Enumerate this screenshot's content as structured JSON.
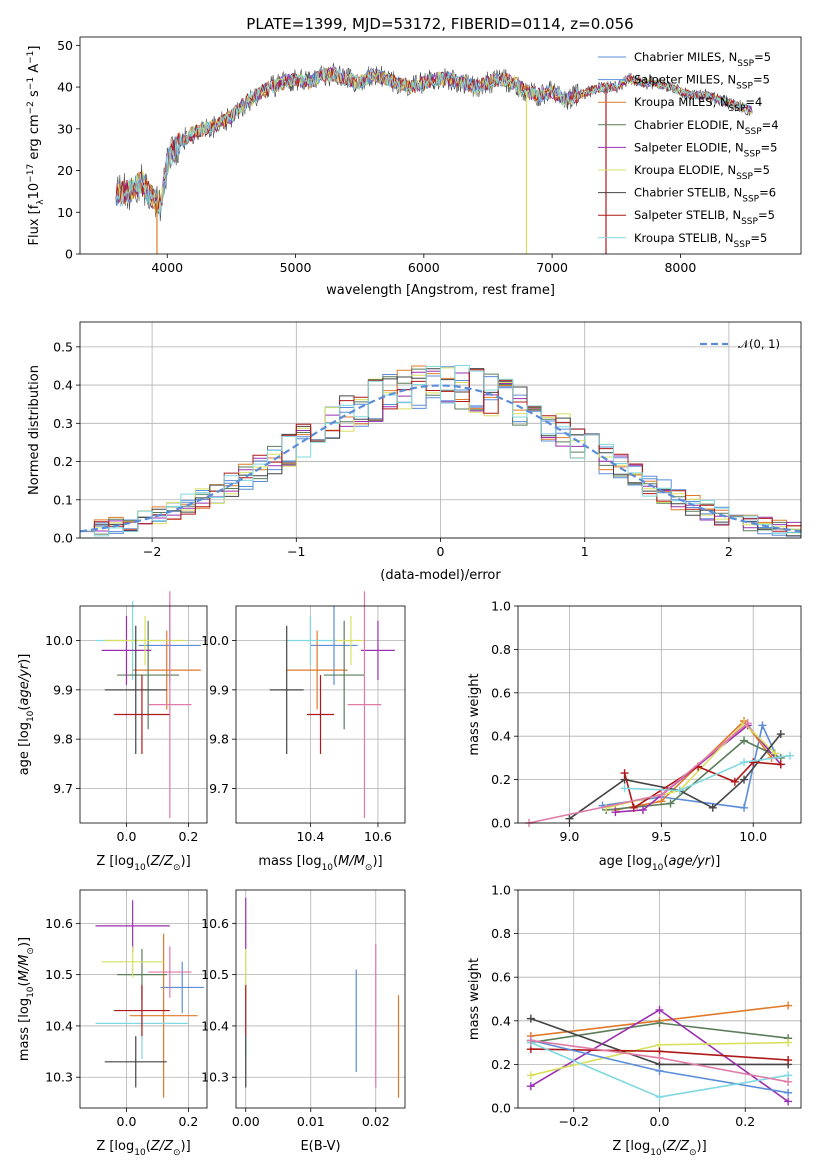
{
  "title": "PLATE=1399, MJD=53172, FIBERID=0114, z=0.056",
  "models": [
    {
      "name": "Chabrier MILES",
      "nssp": "5",
      "color": "#5b8dd9"
    },
    {
      "name": "Salpeter MILES",
      "nssp": "5",
      "color": "#5b8dd9"
    },
    {
      "name": "Kroupa MILES",
      "nssp": "4",
      "color": "#e07a2a"
    },
    {
      "name": "Chabrier ELODIE",
      "nssp": "4",
      "color": "#5a7d5a"
    },
    {
      "name": "Salpeter ELODIE",
      "nssp": "5",
      "color": "#9b30b0"
    },
    {
      "name": "Kroupa ELODIE",
      "nssp": "5",
      "color": "#d8e060"
    },
    {
      "name": "Chabrier STELIB",
      "nssp": "6",
      "color": "#444444"
    },
    {
      "name": "Salpeter STELIB",
      "nssp": "5",
      "color": "#b01818"
    },
    {
      "name": "Kroupa STELIB",
      "nssp": "5",
      "color": "#80d8e0"
    }
  ],
  "legend_prefix_nssp": "N",
  "legend_sub_nssp": "SSP",
  "chart_data": [
    {
      "id": "spectrum",
      "type": "line",
      "xlabel": "wavelength [Angstrom, rest frame]",
      "ylabel": "Flux [f  10   erg cm   s   A  ]",
      "ylabel_parts": {
        "a": "Flux [f",
        "b": "λ",
        "c": "10",
        "d": "−17",
        "e": " erg cm",
        "f": "−2",
        "g": " s",
        "h": "−1",
        "i": " A",
        "j": "−1",
        "k": "]"
      },
      "xlim": [
        3320,
        8940
      ],
      "ylim": [
        0,
        52
      ],
      "xticks": [
        4000,
        5000,
        6000,
        7000,
        8000
      ],
      "yticks": [
        0,
        10,
        20,
        30,
        40,
        50
      ],
      "x": [
        3600,
        3700,
        3800,
        3900,
        3950,
        4000,
        4100,
        4200,
        4300,
        4400,
        4500,
        4600,
        4700,
        4800,
        4900,
        5000,
        5100,
        5200,
        5300,
        5400,
        5500,
        5600,
        5700,
        5800,
        5900,
        6000,
        6100,
        6200,
        6300,
        6400,
        6500,
        6600,
        6700,
        6800,
        6900,
        7000,
        7100,
        7200,
        7300,
        7400,
        7500,
        7600,
        7700,
        7800,
        7900,
        8000,
        8100,
        8200,
        8300,
        8400,
        8500,
        8600
      ],
      "y": [
        14,
        15,
        17,
        13,
        12,
        22,
        27,
        29,
        30,
        31,
        33,
        36,
        38,
        40,
        41,
        42,
        41,
        43,
        43,
        42,
        41,
        43,
        42,
        41,
        40,
        41,
        42,
        42,
        41,
        40,
        41,
        42,
        41,
        39,
        38,
        39,
        37,
        38,
        39,
        40,
        40,
        42,
        41,
        41,
        40,
        39,
        38,
        38,
        37,
        36,
        35,
        34
      ],
      "dropouts": [
        {
          "x": 3920,
          "y": 0,
          "color": "#e07a2a"
        },
        {
          "x": 6800,
          "y": 0,
          "color": "#d8e060"
        },
        {
          "x": 7420,
          "y": 0,
          "color": "#b01818"
        }
      ]
    },
    {
      "id": "residuals",
      "type": "histogram",
      "xlabel": "(data-model)/error",
      "ylabel": "Normed distribution",
      "xlim": [
        -2.5,
        2.5
      ],
      "ylim": [
        0,
        0.565
      ],
      "xticks": [
        -2,
        -1,
        0,
        1,
        2
      ],
      "xticklabels": [
        "−2",
        "−1",
        "0",
        "1",
        "2"
      ],
      "yticks": [
        0.0,
        0.1,
        0.2,
        0.3,
        0.4,
        0.5
      ],
      "yticklabels": [
        "0.0",
        "0.1",
        "0.2",
        "0.3",
        "0.4",
        "0.5"
      ],
      "bin_width": 0.1,
      "reference_label": "𝒩(0, 1)",
      "reference_color": "#5b8dd9"
    },
    {
      "id": "age_vs_Z",
      "type": "errorbar",
      "xlabel": "Z [log  (Z/Z )]",
      "ylabel": "age  [log  (age/yr)]",
      "xlim": [
        -0.15,
        0.26
      ],
      "ylim": [
        9.63,
        10.07
      ],
      "xticks": [
        0.0,
        0.2
      ],
      "xticklabels": [
        "0.0",
        "0.2"
      ],
      "yticks": [
        9.7,
        9.8,
        9.9,
        10.0
      ],
      "yticklabels": [
        "9.7",
        "9.8",
        "9.9",
        "10.0"
      ],
      "points": [
        {
          "x": 0.14,
          "y": 9.99,
          "xerr": 0.1,
          "yerr": 0.08,
          "color": "#5b8dd9"
        },
        {
          "x": 0.13,
          "y": 9.94,
          "xerr": 0.11,
          "yerr": 0.08,
          "color": "#e07a2a"
        },
        {
          "x": 0.02,
          "y": 10.0,
          "xerr": 0.12,
          "yerr": 0.08,
          "color": "#80d8e0"
        },
        {
          "x": 0.07,
          "y": 9.93,
          "xerr": 0.1,
          "yerr": 0.11,
          "color": "#5a7d5a"
        },
        {
          "x": 0.0,
          "y": 9.98,
          "xerr": 0.08,
          "yerr": 0.07,
          "color": "#9b30b0"
        },
        {
          "x": 0.06,
          "y": 10.0,
          "xerr": 0.13,
          "yerr": 0.05,
          "color": "#d8e060"
        },
        {
          "x": 0.03,
          "y": 9.9,
          "xerr": 0.1,
          "yerr": 0.13,
          "color": "#444444"
        },
        {
          "x": 0.05,
          "y": 9.85,
          "xerr": 0.09,
          "yerr": 0.08,
          "color": "#b01818"
        },
        {
          "x": 0.14,
          "y": 9.87,
          "xerr": 0.07,
          "yerr": 0.23,
          "color": "#e07aa8"
        }
      ]
    },
    {
      "id": "age_vs_mass",
      "type": "errorbar",
      "xlabel": "mass [log  (M/M )]",
      "ylabel": "",
      "xlim": [
        10.18,
        10.68
      ],
      "ylim": [
        9.63,
        10.07
      ],
      "xticks": [
        10.4,
        10.6
      ],
      "xticklabels": [
        "10.4",
        "10.6"
      ],
      "yticks": [
        9.7,
        9.8,
        9.9,
        10.0
      ],
      "yticklabels": [
        "9.7",
        "9.8",
        "9.9",
        "10.0"
      ],
      "points": [
        {
          "x": 10.47,
          "y": 9.99,
          "xerr": 0.07,
          "yerr": 0.08,
          "color": "#5b8dd9"
        },
        {
          "x": 10.42,
          "y": 9.94,
          "xerr": 0.09,
          "yerr": 0.08,
          "color": "#e07a2a"
        },
        {
          "x": 10.4,
          "y": 10.0,
          "xerr": 0.07,
          "yerr": 0.05,
          "color": "#80d8e0"
        },
        {
          "x": 10.5,
          "y": 9.93,
          "xerr": 0.06,
          "yerr": 0.11,
          "color": "#5a7d5a"
        },
        {
          "x": 10.6,
          "y": 9.98,
          "xerr": 0.05,
          "yerr": 0.06,
          "color": "#9b30b0"
        },
        {
          "x": 10.52,
          "y": 10.0,
          "xerr": 0.04,
          "yerr": 0.05,
          "color": "#d8e060"
        },
        {
          "x": 10.33,
          "y": 9.9,
          "xerr": 0.05,
          "yerr": 0.13,
          "color": "#444444"
        },
        {
          "x": 10.43,
          "y": 9.85,
          "xerr": 0.04,
          "yerr": 0.08,
          "color": "#b01818"
        },
        {
          "x": 10.56,
          "y": 9.87,
          "xerr": 0.05,
          "yerr": 0.23,
          "color": "#e07aa8"
        }
      ]
    },
    {
      "id": "weight_vs_age",
      "type": "line",
      "xlabel": "age  [log  (age/yr)]",
      "ylabel": "mass weight",
      "xlim": [
        8.72,
        10.26
      ],
      "ylim": [
        0,
        1.0
      ],
      "xticks": [
        9.0,
        9.5,
        10.0
      ],
      "xticklabels": [
        "9.0",
        "9.5",
        "10.0"
      ],
      "yticks": [
        0.0,
        0.2,
        0.4,
        0.6,
        0.8,
        1.0
      ],
      "yticklabels": [
        "0.0",
        "0.2",
        "0.4",
        "0.6",
        "0.8",
        "1.0"
      ],
      "series": [
        {
          "color": "#5b8dd9",
          "x": [
            9.18,
            9.5,
            9.95,
            10.05,
            10.12
          ],
          "y": [
            0.08,
            0.12,
            0.07,
            0.45,
            0.32
          ]
        },
        {
          "color": "#e07a2a",
          "x": [
            9.25,
            9.5,
            9.95,
            10.1
          ],
          "y": [
            0.06,
            0.1,
            0.47,
            0.3
          ]
        },
        {
          "color": "#5a7d5a",
          "x": [
            9.2,
            9.55,
            9.95,
            10.15
          ],
          "y": [
            0.06,
            0.09,
            0.38,
            0.3
          ]
        },
        {
          "color": "#9b30b0",
          "x": [
            9.25,
            9.4,
            9.97,
            10.15
          ],
          "y": [
            0.05,
            0.06,
            0.45,
            0.27
          ]
        },
        {
          "color": "#d8e060",
          "x": [
            9.2,
            9.6,
            9.95,
            10.12
          ],
          "y": [
            0.07,
            0.15,
            0.46,
            0.32
          ]
        },
        {
          "color": "#444444",
          "x": [
            9.0,
            9.3,
            9.6,
            9.78,
            9.95,
            10.15
          ],
          "y": [
            0.02,
            0.2,
            0.15,
            0.07,
            0.2,
            0.41
          ]
        },
        {
          "color": "#b01818",
          "x": [
            9.3,
            9.35,
            9.7,
            9.9,
            10.0,
            10.15
          ],
          "y": [
            0.23,
            0.07,
            0.26,
            0.19,
            0.28,
            0.27
          ]
        },
        {
          "color": "#80d8e0",
          "x": [
            9.3,
            9.6,
            9.95,
            10.2
          ],
          "y": [
            0.16,
            0.15,
            0.28,
            0.31
          ]
        },
        {
          "color": "#e07aa8",
          "x": [
            8.78,
            9.5,
            9.97
          ],
          "y": [
            0.0,
            0.13,
            0.46
          ]
        }
      ]
    },
    {
      "id": "mass_vs_Z",
      "type": "errorbar",
      "xlabel": "Z [log  (Z/Z )]",
      "ylabel": "mass [log  (M/M )]",
      "xlim": [
        -0.15,
        0.26
      ],
      "ylim": [
        10.24,
        10.665
      ],
      "xticks": [
        0.0,
        0.2
      ],
      "xticklabels": [
        "0.0",
        "0.2"
      ],
      "yticks": [
        10.3,
        10.4,
        10.5,
        10.6
      ],
      "yticklabels": [
        "10.3",
        "10.4",
        "10.5",
        "10.6"
      ],
      "points": [
        {
          "x": 0.18,
          "y": 10.475,
          "xerr": 0.07,
          "yerr": 0.05,
          "color": "#5b8dd9"
        },
        {
          "x": 0.12,
          "y": 10.42,
          "xerr": 0.11,
          "yerr": 0.16,
          "color": "#e07a2a"
        },
        {
          "x": 0.05,
          "y": 10.405,
          "xerr": 0.15,
          "yerr": 0.07,
          "color": "#80d8e0"
        },
        {
          "x": 0.05,
          "y": 10.5,
          "xerr": 0.08,
          "yerr": 0.05,
          "color": "#5a7d5a"
        },
        {
          "x": 0.02,
          "y": 10.595,
          "xerr": 0.12,
          "yerr": 0.05,
          "color": "#9b30b0"
        },
        {
          "x": 0.02,
          "y": 10.525,
          "xerr": 0.1,
          "yerr": 0.03,
          "color": "#d8e060"
        },
        {
          "x": 0.03,
          "y": 10.33,
          "xerr": 0.1,
          "yerr": 0.05,
          "color": "#444444"
        },
        {
          "x": 0.05,
          "y": 10.43,
          "xerr": 0.09,
          "yerr": 0.05,
          "color": "#b01818"
        },
        {
          "x": 0.14,
          "y": 10.505,
          "xerr": 0.07,
          "yerr": 0.05,
          "color": "#e07aa8"
        }
      ]
    },
    {
      "id": "mass_vs_ebv",
      "type": "errorbar",
      "xlabel": "E(B-V)",
      "ylabel": "",
      "xlim": [
        -0.0015,
        0.0245
      ],
      "ylim": [
        10.24,
        10.665
      ],
      "xticks": [
        0.0,
        0.01,
        0.02
      ],
      "xticklabels": [
        "0.00",
        "0.01",
        "0.02"
      ],
      "yticks": [
        10.3,
        10.4,
        10.5,
        10.6
      ],
      "yticklabels": [
        "10.3",
        "10.4",
        "10.5",
        "10.6"
      ],
      "points": [
        {
          "x": 0.0,
          "y": 10.4,
          "xerr": 0.0,
          "yerr": 0.06,
          "color": "#80d8e0"
        },
        {
          "x": 0.0,
          "y": 10.5,
          "xerr": 0.0,
          "yerr": 0.05,
          "color": "#d8e060"
        },
        {
          "x": 0.0,
          "y": 10.6,
          "xerr": 0.0,
          "yerr": 0.05,
          "color": "#9b30b0"
        },
        {
          "x": 0.0,
          "y": 10.43,
          "xerr": 0.0,
          "yerr": 0.05,
          "color": "#b01818"
        },
        {
          "x": 0.0,
          "y": 10.33,
          "xerr": 0.0,
          "yerr": 0.05,
          "color": "#444444"
        },
        {
          "x": 0.017,
          "y": 10.41,
          "xerr": 0.0,
          "yerr": 0.1,
          "color": "#5b8dd9"
        },
        {
          "x": 0.02,
          "y": 10.42,
          "xerr": 0.0,
          "yerr": 0.14,
          "color": "#e07aa8"
        },
        {
          "x": 0.0235,
          "y": 10.36,
          "xerr": 0.0,
          "yerr": 0.1,
          "color": "#e07a2a"
        }
      ]
    },
    {
      "id": "weight_vs_Z",
      "type": "line",
      "xlabel": "Z [log  (Z/Z )]",
      "ylabel": "mass weight",
      "xlim": [
        -0.33,
        0.33
      ],
      "ylim": [
        0,
        1.0
      ],
      "xticks": [
        -0.2,
        0.0,
        0.2
      ],
      "xticklabels": [
        "−0.2",
        "0.0",
        "0.2"
      ],
      "yticks": [
        0.0,
        0.2,
        0.4,
        0.6,
        0.8,
        1.0
      ],
      "yticklabels": [
        "0.0",
        "0.2",
        "0.4",
        "0.6",
        "0.8",
        "1.0"
      ],
      "series": [
        {
          "color": "#e07a2a",
          "x": [
            -0.3,
            0.0,
            0.3
          ],
          "y": [
            0.33,
            0.4,
            0.47
          ]
        },
        {
          "color": "#5a7d5a",
          "x": [
            -0.3,
            0.0,
            0.3
          ],
          "y": [
            0.3,
            0.39,
            0.32
          ]
        },
        {
          "color": "#444444",
          "x": [
            -0.3,
            0.0,
            0.3
          ],
          "y": [
            0.41,
            0.2,
            0.2
          ]
        },
        {
          "color": "#9b30b0",
          "x": [
            -0.3,
            0.0,
            0.3
          ],
          "y": [
            0.1,
            0.45,
            0.03
          ]
        },
        {
          "color": "#d8e060",
          "x": [
            -0.3,
            0.0,
            0.3
          ],
          "y": [
            0.15,
            0.29,
            0.3
          ]
        },
        {
          "color": "#b01818",
          "x": [
            -0.3,
            0.0,
            0.3
          ],
          "y": [
            0.27,
            0.26,
            0.22
          ]
        },
        {
          "color": "#5b8dd9",
          "x": [
            -0.3,
            0.0,
            0.3
          ],
          "y": [
            0.31,
            0.17,
            0.07
          ]
        },
        {
          "color": "#80d8e0",
          "x": [
            -0.3,
            0.0,
            0.3
          ],
          "y": [
            0.3,
            0.05,
            0.15
          ]
        },
        {
          "color": "#e07aa8",
          "x": [
            -0.3,
            0.0,
            0.3
          ],
          "y": [
            0.31,
            0.23,
            0.12
          ]
        }
      ]
    }
  ]
}
